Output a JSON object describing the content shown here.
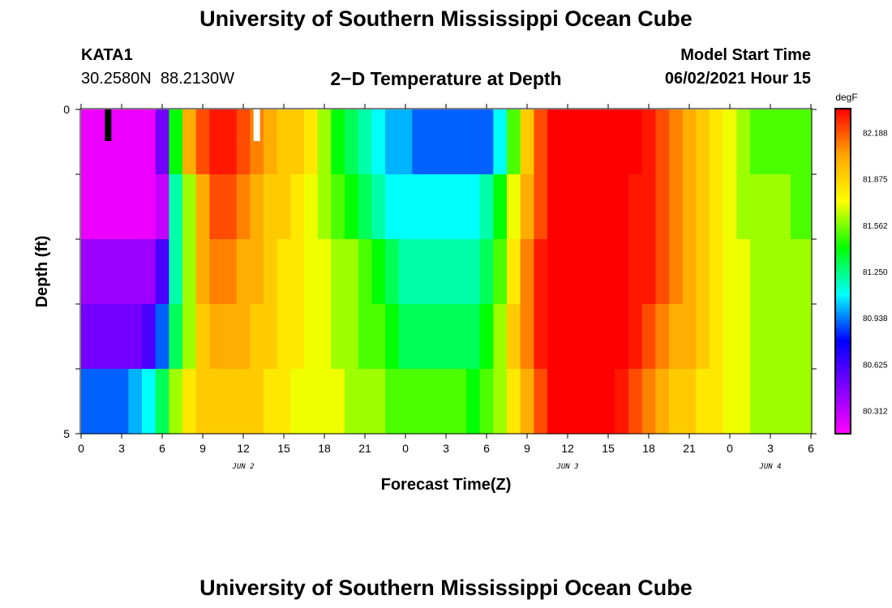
{
  "header": {
    "title": "University of Southern Mississippi Ocean Cube",
    "station_id": "KATA1",
    "station_coords": "30.2580N  88.2130W",
    "subtitle": "2−D Temperature at Depth",
    "model_start_label": "Model Start Time",
    "model_start_value": "06/02/2021 Hour 15"
  },
  "footer": {
    "title": "University of Southern Mississippi Ocean Cube"
  },
  "chart_data": {
    "type": "heatmap",
    "title": "2−D Temperature at Depth",
    "xlabel": "Forecast Time(Z)",
    "ylabel": "Depth (ft)",
    "colorbar_unit": "degF",
    "x_ticks": [
      "0",
      "3",
      "6",
      "9",
      "12",
      "15",
      "18",
      "21",
      "0",
      "3",
      "6",
      "9",
      "12",
      "15",
      "18",
      "21",
      "0",
      "3",
      "6"
    ],
    "date_labels": [
      {
        "label": "JUN 2",
        "tick_index": 4
      },
      {
        "label": "JUN 3",
        "tick_index": 12
      },
      {
        "label": "JUN 4",
        "tick_index": 17
      }
    ],
    "y_ticks": [
      "0",
      "5"
    ],
    "ylim": [
      0,
      5
    ],
    "x_hours": [
      0,
      54
    ],
    "colorbar_ticks": [
      "82.188",
      "81.875",
      "81.562",
      "81.250",
      "80.938",
      "80.625",
      "80.312"
    ],
    "color_range": [
      80.156,
      82.344
    ],
    "colors": [
      "#ff00ff",
      "#8000ff",
      "#0000ff",
      "#00ffff",
      "#00ff00",
      "#ffff00",
      "#ffa500",
      "#ff0000"
    ],
    "markers": [
      {
        "hour": 2,
        "color": "#000000"
      },
      {
        "hour": 13,
        "color": "#ffffff"
      }
    ],
    "depth_layers": [
      0.5,
      1.5,
      2.5,
      3.5,
      4.5
    ],
    "hours": [
      0,
      1,
      2,
      3,
      4,
      5,
      6,
      7,
      8,
      9,
      10,
      11,
      12,
      13,
      14,
      15,
      16,
      17,
      18,
      19,
      20,
      21,
      22,
      23,
      24,
      25,
      26,
      27,
      28,
      29,
      30,
      31,
      32,
      33,
      34,
      35,
      36,
      37,
      38,
      39,
      40,
      41,
      42,
      43,
      44,
      45,
      46,
      47,
      48,
      49,
      50,
      51,
      52,
      53,
      54
    ],
    "temperature": [
      [
        80.2,
        80.2,
        80.2,
        80.2,
        80.2,
        80.2,
        80.5,
        81.4,
        82.0,
        82.2,
        82.3,
        82.3,
        82.2,
        82.1,
        82.0,
        81.9,
        81.9,
        81.8,
        81.6,
        81.4,
        81.3,
        81.2,
        81.1,
        81.0,
        81.0,
        80.9,
        80.9,
        80.9,
        80.9,
        80.9,
        80.9,
        81.1,
        81.5,
        81.9,
        82.2,
        82.4,
        82.4,
        82.4,
        82.4,
        82.4,
        82.4,
        82.4,
        82.3,
        82.2,
        82.1,
        82.0,
        81.9,
        81.8,
        81.7,
        81.6,
        81.5,
        81.5,
        81.5,
        81.5,
        81.5
      ],
      [
        80.2,
        80.2,
        80.2,
        80.2,
        80.2,
        80.2,
        80.3,
        81.2,
        81.6,
        82.0,
        82.2,
        82.2,
        82.1,
        82.0,
        81.9,
        81.9,
        81.8,
        81.7,
        81.6,
        81.5,
        81.4,
        81.3,
        81.2,
        81.1,
        81.1,
        81.1,
        81.1,
        81.1,
        81.1,
        81.1,
        81.2,
        81.4,
        81.7,
        82.0,
        82.2,
        82.4,
        82.4,
        82.4,
        82.4,
        82.4,
        82.4,
        82.3,
        82.3,
        82.2,
        82.1,
        82.0,
        81.9,
        81.8,
        81.7,
        81.6,
        81.6,
        81.6,
        81.6,
        81.5,
        81.5
      ],
      [
        80.4,
        80.4,
        80.4,
        80.4,
        80.4,
        80.4,
        80.6,
        81.2,
        81.6,
        82.0,
        82.1,
        82.1,
        82.0,
        82.0,
        81.9,
        81.8,
        81.8,
        81.7,
        81.7,
        81.6,
        81.6,
        81.5,
        81.4,
        81.3,
        81.2,
        81.2,
        81.2,
        81.2,
        81.2,
        81.2,
        81.3,
        81.5,
        81.8,
        82.1,
        82.3,
        82.4,
        82.4,
        82.4,
        82.4,
        82.4,
        82.4,
        82.3,
        82.3,
        82.2,
        82.1,
        82.0,
        81.9,
        81.8,
        81.7,
        81.7,
        81.6,
        81.6,
        81.6,
        81.6,
        81.6
      ],
      [
        80.5,
        80.5,
        80.5,
        80.5,
        80.5,
        80.6,
        80.9,
        81.3,
        81.6,
        81.9,
        82.0,
        82.0,
        82.0,
        81.9,
        81.9,
        81.8,
        81.8,
        81.7,
        81.7,
        81.6,
        81.6,
        81.5,
        81.5,
        81.4,
        81.3,
        81.3,
        81.3,
        81.3,
        81.3,
        81.3,
        81.4,
        81.6,
        81.9,
        82.1,
        82.3,
        82.4,
        82.4,
        82.4,
        82.4,
        82.4,
        82.4,
        82.3,
        82.2,
        82.1,
        82.0,
        82.0,
        81.9,
        81.8,
        81.7,
        81.7,
        81.6,
        81.6,
        81.6,
        81.6,
        81.6
      ],
      [
        80.9,
        80.9,
        80.9,
        80.9,
        81.0,
        81.1,
        81.3,
        81.6,
        81.8,
        81.9,
        81.9,
        81.9,
        81.9,
        81.9,
        81.8,
        81.8,
        81.7,
        81.7,
        81.7,
        81.7,
        81.6,
        81.6,
        81.6,
        81.5,
        81.5,
        81.5,
        81.5,
        81.5,
        81.5,
        81.4,
        81.5,
        81.6,
        81.8,
        82.0,
        82.2,
        82.4,
        82.4,
        82.4,
        82.4,
        82.4,
        82.3,
        82.2,
        82.1,
        82.0,
        81.9,
        81.9,
        81.8,
        81.8,
        81.7,
        81.7,
        81.6,
        81.6,
        81.6,
        81.6,
        81.6
      ]
    ]
  }
}
